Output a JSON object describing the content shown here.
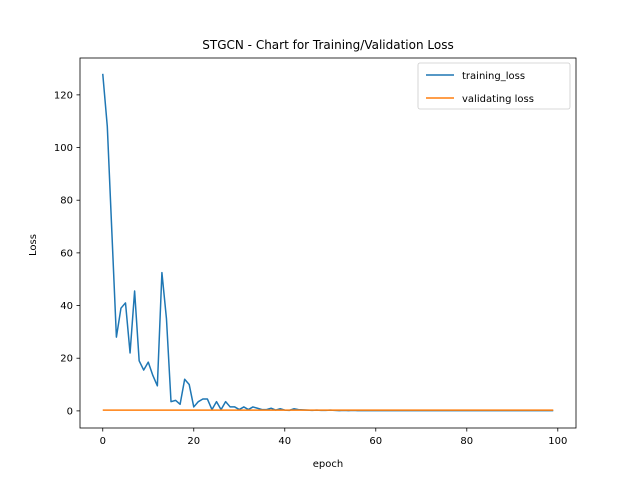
{
  "chart_data": {
    "type": "line",
    "title": "STGCN - Chart for Training/Validation Loss",
    "xlabel": "epoch",
    "ylabel": "Loss",
    "xlim": [
      -5,
      104
    ],
    "ylim": [
      -6.5,
      134
    ],
    "xticks": [
      0,
      20,
      40,
      60,
      80,
      100
    ],
    "yticks": [
      0,
      20,
      40,
      60,
      80,
      100,
      120
    ],
    "grid": false,
    "legend_position": "top-right",
    "series": [
      {
        "name": "training_loss",
        "color": "#1f77b4",
        "x": [
          0,
          1,
          2,
          3,
          4,
          5,
          6,
          7,
          8,
          9,
          10,
          11,
          12,
          13,
          14,
          15,
          16,
          17,
          18,
          19,
          20,
          21,
          22,
          23,
          24,
          25,
          26,
          27,
          28,
          29,
          30,
          31,
          32,
          33,
          34,
          35,
          36,
          37,
          38,
          39,
          40,
          41,
          42,
          43,
          44,
          45,
          46,
          47,
          48,
          49,
          50,
          51,
          52,
          53,
          54,
          55,
          56,
          57,
          58,
          59,
          60,
          61,
          62,
          63,
          64,
          65,
          66,
          67,
          68,
          69,
          70,
          71,
          72,
          73,
          74,
          75,
          76,
          77,
          78,
          79,
          80,
          81,
          82,
          83,
          84,
          85,
          86,
          87,
          88,
          89,
          90,
          91,
          92,
          93,
          94,
          95,
          96,
          97,
          98,
          99
        ],
        "y": [
          128,
          108,
          68,
          28,
          39,
          41,
          22,
          45.5,
          19,
          15.5,
          18.5,
          13.5,
          9.5,
          52.5,
          35,
          3.5,
          4,
          2.5,
          12,
          10,
          1.5,
          3.5,
          4.5,
          4.5,
          0.5,
          3.5,
          0.5,
          3.5,
          1.5,
          1.5,
          0.5,
          1.5,
          0.5,
          1.5,
          1,
          0.5,
          0.5,
          1,
          0.3,
          0.8,
          0.3,
          0.2,
          0.8,
          0.5,
          0.4,
          0.3,
          0.2,
          0.3,
          0.2,
          0.2,
          0.3,
          0.2,
          0.1,
          0.2,
          0.1,
          0.2,
          0.1,
          0.1,
          0.1,
          0.1,
          0.1,
          0.1,
          0.1,
          0.1,
          0.1,
          0.1,
          0.1,
          0.1,
          0.1,
          0.1,
          0.1,
          0.1,
          0.1,
          0.1,
          0.1,
          0.1,
          0.1,
          0.1,
          0.1,
          0.1,
          0.1,
          0.1,
          0.1,
          0.1,
          0.1,
          0.1,
          0.1,
          0.1,
          0.1,
          0.1,
          0.1,
          0.1,
          0.1,
          0.1,
          0.1,
          0.1,
          0.1,
          0.1,
          0.1,
          0.1
        ]
      },
      {
        "name": "validating loss",
        "color": "#ff7f0e",
        "x": [
          0,
          5,
          10,
          15,
          20,
          25,
          30,
          35,
          40,
          45,
          50,
          55,
          60,
          65,
          70,
          75,
          80,
          85,
          90,
          95,
          99
        ],
        "y": [
          0.3,
          0.3,
          0.3,
          0.3,
          0.3,
          0.3,
          0.3,
          0.3,
          0.3,
          0.3,
          0.3,
          0.3,
          0.3,
          0.3,
          0.3,
          0.3,
          0.3,
          0.3,
          0.3,
          0.3,
          0.3
        ]
      }
    ]
  }
}
